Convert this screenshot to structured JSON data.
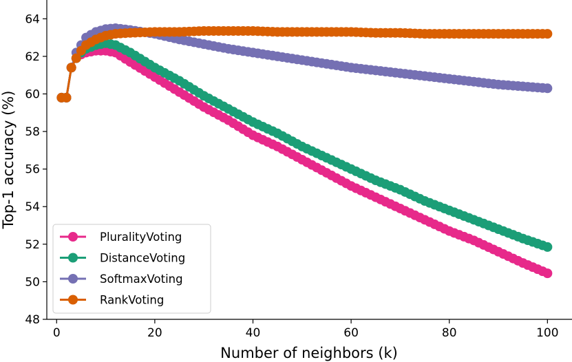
{
  "chart_data": {
    "type": "line",
    "title": "",
    "xlabel": "Number of neighbors (k)",
    "ylabel": "Top-1 accuracy (%)",
    "xlim": [
      -2,
      105
    ],
    "ylim": [
      48,
      65
    ],
    "xticks": [
      0,
      20,
      40,
      60,
      80,
      100
    ],
    "yticks": [
      48,
      50,
      52,
      54,
      56,
      58,
      60,
      62,
      64
    ],
    "legend_position": "lower-left",
    "series": [
      {
        "name": "PluralityVoting",
        "color": "#e7298a",
        "points": [
          [
            1,
            59.8
          ],
          [
            2,
            59.8
          ],
          [
            3,
            61.4
          ],
          [
            4,
            61.9
          ],
          [
            5,
            62.1
          ],
          [
            6,
            62.2
          ],
          [
            8,
            62.3
          ],
          [
            10,
            62.3
          ],
          [
            12,
            62.2
          ],
          [
            15,
            61.7
          ],
          [
            20,
            60.9
          ],
          [
            25,
            60.1
          ],
          [
            30,
            59.3
          ],
          [
            35,
            58.6
          ],
          [
            40,
            57.8
          ],
          [
            45,
            57.2
          ],
          [
            50,
            56.5
          ],
          [
            55,
            55.8
          ],
          [
            60,
            55.1
          ],
          [
            65,
            54.5
          ],
          [
            70,
            53.9
          ],
          [
            75,
            53.3
          ],
          [
            80,
            52.7
          ],
          [
            85,
            52.2
          ],
          [
            90,
            51.6
          ],
          [
            95,
            51.0
          ],
          [
            100,
            50.45
          ]
        ]
      },
      {
        "name": "DistanceVoting",
        "color": "#1b9e77",
        "points": [
          [
            1,
            59.8
          ],
          [
            2,
            59.8
          ],
          [
            3,
            61.4
          ],
          [
            4,
            61.9
          ],
          [
            5,
            62.2
          ],
          [
            6,
            62.4
          ],
          [
            8,
            62.6
          ],
          [
            10,
            62.7
          ],
          [
            12,
            62.6
          ],
          [
            15,
            62.2
          ],
          [
            20,
            61.4
          ],
          [
            25,
            60.7
          ],
          [
            30,
            59.9
          ],
          [
            35,
            59.2
          ],
          [
            40,
            58.5
          ],
          [
            45,
            57.9
          ],
          [
            50,
            57.2
          ],
          [
            55,
            56.6
          ],
          [
            60,
            56.0
          ],
          [
            65,
            55.4
          ],
          [
            70,
            54.9
          ],
          [
            75,
            54.3
          ],
          [
            80,
            53.8
          ],
          [
            85,
            53.3
          ],
          [
            90,
            52.8
          ],
          [
            95,
            52.3
          ],
          [
            100,
            51.85
          ]
        ]
      },
      {
        "name": "SoftmaxVoting",
        "color": "#7570b3",
        "points": [
          [
            1,
            59.8
          ],
          [
            2,
            59.8
          ],
          [
            3,
            61.4
          ],
          [
            4,
            62.2
          ],
          [
            5,
            62.6
          ],
          [
            6,
            63.0
          ],
          [
            8,
            63.3
          ],
          [
            10,
            63.45
          ],
          [
            12,
            63.5
          ],
          [
            15,
            63.4
          ],
          [
            20,
            63.2
          ],
          [
            25,
            62.9
          ],
          [
            30,
            62.65
          ],
          [
            35,
            62.4
          ],
          [
            40,
            62.2
          ],
          [
            45,
            62.0
          ],
          [
            50,
            61.8
          ],
          [
            55,
            61.6
          ],
          [
            60,
            61.4
          ],
          [
            65,
            61.25
          ],
          [
            70,
            61.1
          ],
          [
            75,
            60.95
          ],
          [
            80,
            60.8
          ],
          [
            85,
            60.65
          ],
          [
            90,
            60.5
          ],
          [
            95,
            60.4
          ],
          [
            100,
            60.3
          ]
        ]
      },
      {
        "name": "RankVoting",
        "color": "#d95f02",
        "points": [
          [
            1,
            59.8
          ],
          [
            2,
            59.8
          ],
          [
            3,
            61.4
          ],
          [
            4,
            61.9
          ],
          [
            5,
            62.3
          ],
          [
            6,
            62.6
          ],
          [
            8,
            62.9
          ],
          [
            10,
            63.1
          ],
          [
            12,
            63.2
          ],
          [
            15,
            63.25
          ],
          [
            20,
            63.3
          ],
          [
            25,
            63.3
          ],
          [
            30,
            63.35
          ],
          [
            35,
            63.35
          ],
          [
            40,
            63.35
          ],
          [
            45,
            63.3
          ],
          [
            50,
            63.3
          ],
          [
            55,
            63.3
          ],
          [
            60,
            63.3
          ],
          [
            65,
            63.25
          ],
          [
            70,
            63.25
          ],
          [
            75,
            63.2
          ],
          [
            80,
            63.2
          ],
          [
            85,
            63.2
          ],
          [
            90,
            63.2
          ],
          [
            95,
            63.2
          ],
          [
            100,
            63.2
          ]
        ]
      }
    ]
  }
}
